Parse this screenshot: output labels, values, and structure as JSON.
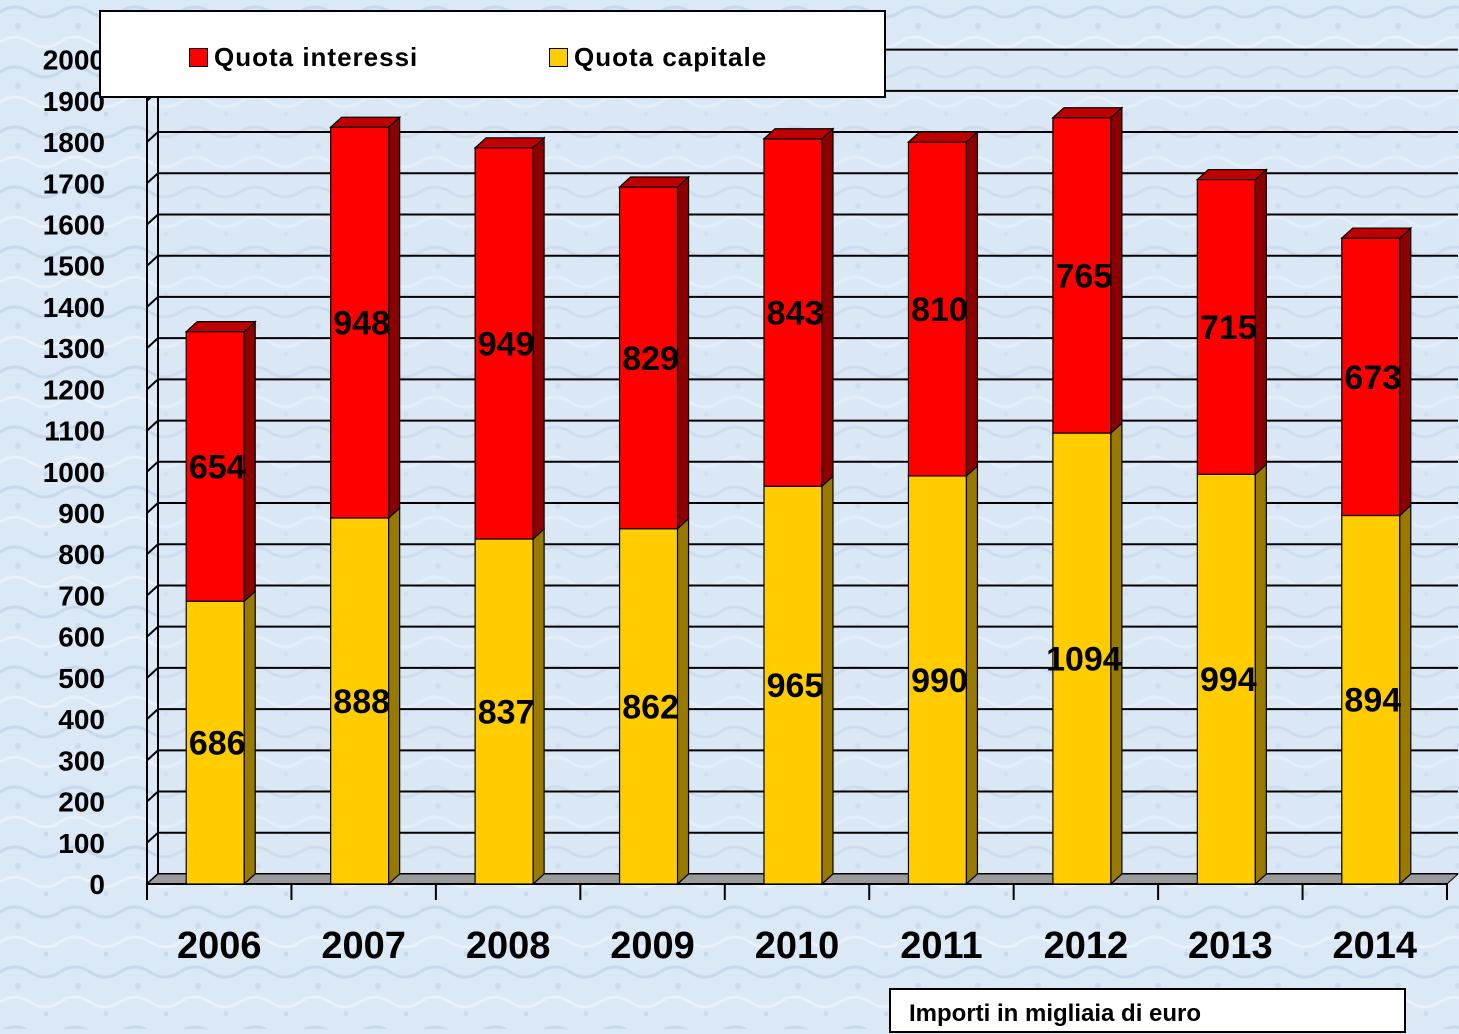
{
  "chart_data": {
    "type": "bar",
    "stacked": true,
    "categories": [
      "2006",
      "2007",
      "2008",
      "2009",
      "2010",
      "2011",
      "2012",
      "2013",
      "2014"
    ],
    "series": [
      {
        "name": "Quota capitale",
        "color": "#ffcc00",
        "values": [
          686,
          888,
          837,
          862,
          965,
          990,
          1094,
          994,
          894
        ]
      },
      {
        "name": "Quota interessi",
        "color": "#ff0000",
        "values": [
          654,
          948,
          949,
          829,
          843,
          810,
          765,
          715,
          673
        ]
      }
    ],
    "ylim": [
      0,
      2000
    ],
    "yticks": [
      0,
      100,
      200,
      300,
      400,
      500,
      600,
      700,
      800,
      900,
      1000,
      1100,
      1200,
      1300,
      1400,
      1500,
      1600,
      1700,
      1800,
      1900,
      2000
    ],
    "grid": true,
    "legend_position": "top-left",
    "note": "Importi in migliaia di euro"
  },
  "legend": [
    {
      "label": "Quota interessi",
      "color": "#ff0000"
    },
    {
      "label": "Quota capitale",
      "color": "#ffcc00"
    }
  ]
}
